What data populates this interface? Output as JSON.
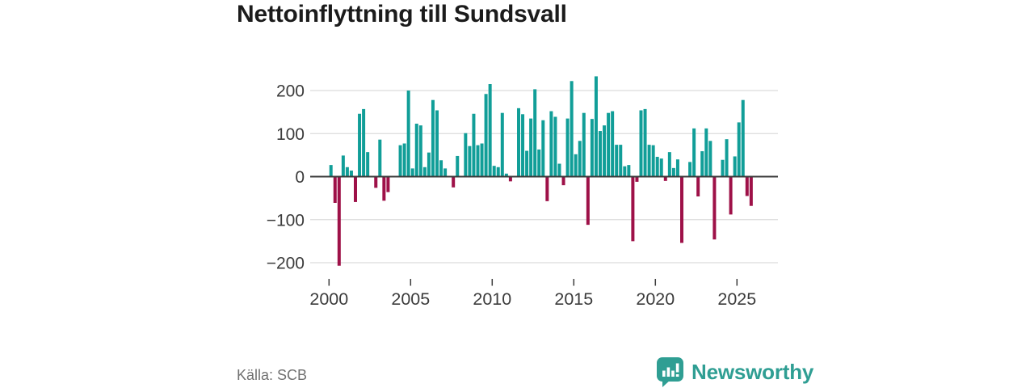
{
  "title": "Nettoinflyttning till Sundsvall",
  "source": "Källa: SCB",
  "logo": {
    "text": "Newsworthy"
  },
  "colors": {
    "positive": "#119e98",
    "negative": "#9e1148",
    "accent": "#2f9e93",
    "grid": "#dcdcdc",
    "axis": "#3a3a3a",
    "tick_text": "#3c3c3c"
  },
  "chart_data": {
    "type": "bar",
    "title": "Nettoinflyttning till Sundsvall",
    "xlabel": "",
    "ylabel": "",
    "frequency": "quarterly",
    "x_start_quarter": "2000Q1",
    "x_end_quarter": "2025Q4",
    "x_ticks": [
      2000,
      2005,
      2010,
      2015,
      2020,
      2025
    ],
    "y_ticks": [
      200,
      100,
      0,
      -100,
      -200
    ],
    "y_tick_labels": [
      "200",
      "100",
      "0",
      "−100",
      "−200"
    ],
    "ylim": [
      -245,
      250
    ],
    "grid": "horizontal",
    "legend": "none",
    "values": [
      27,
      -61,
      -207,
      49,
      22,
      14,
      -59,
      146,
      157,
      57,
      0,
      -26,
      86,
      -56,
      -36,
      0,
      0,
      73,
      77,
      200,
      19,
      123,
      119,
      22,
      56,
      178,
      154,
      38,
      19,
      0,
      -25,
      48,
      0,
      101,
      71,
      146,
      73,
      77,
      192,
      215,
      25,
      22,
      148,
      7,
      -11,
      0,
      159,
      145,
      60,
      135,
      203,
      63,
      131,
      -57,
      152,
      139,
      30,
      -20,
      135,
      222,
      52,
      83,
      148,
      -112,
      134,
      233,
      106,
      119,
      148,
      152,
      74,
      74,
      24,
      27,
      -150,
      -12,
      154,
      157,
      74,
      73,
      46,
      42,
      -10,
      57,
      20,
      40,
      -154,
      0,
      34,
      112,
      -46,
      59,
      112,
      83,
      -146,
      0,
      39,
      87,
      -88,
      47,
      126,
      178,
      -45,
      -68
    ]
  }
}
